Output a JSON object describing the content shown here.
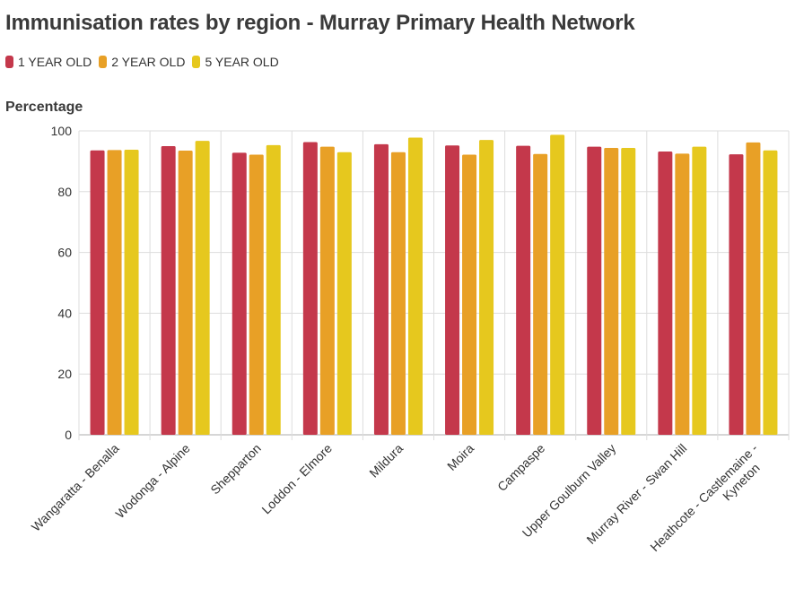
{
  "chart_data": {
    "type": "bar",
    "title": "Immunisation rates by region - Murray Primary Health Network",
    "ylabel": "Percentage",
    "xlabel": "",
    "ylim": [
      0,
      100
    ],
    "yticks": [
      0,
      20,
      40,
      60,
      80,
      100
    ],
    "grid": true,
    "legend_position": "top-left",
    "categories": [
      [
        "Wangaratta - Benalla"
      ],
      [
        "Wodonga - Alpine"
      ],
      [
        "Shepparton"
      ],
      [
        "Loddon - Elmore"
      ],
      [
        "Mildura"
      ],
      [
        "Moira"
      ],
      [
        "Campaspe"
      ],
      [
        "Upper Goulburn Valley"
      ],
      [
        "Murray River - Swan Hill"
      ],
      [
        "Heathcote - Castlemaine -",
        "Kyneton"
      ]
    ],
    "series": [
      {
        "name": "1 YEAR OLD",
        "color": "#c4384b",
        "values": [
          93.6,
          95.0,
          92.8,
          96.3,
          95.6,
          95.2,
          95.1,
          94.8,
          93.2,
          92.3
        ]
      },
      {
        "name": "2 YEAR OLD",
        "color": "#e8a026",
        "values": [
          93.7,
          93.5,
          92.2,
          94.8,
          93.0,
          92.2,
          92.4,
          94.4,
          92.5,
          96.2
        ]
      },
      {
        "name": "5 YEAR OLD",
        "color": "#e6c81e",
        "values": [
          93.8,
          96.7,
          95.3,
          93.0,
          97.8,
          97.0,
          98.7,
          94.4,
          94.8,
          93.6
        ]
      }
    ]
  }
}
